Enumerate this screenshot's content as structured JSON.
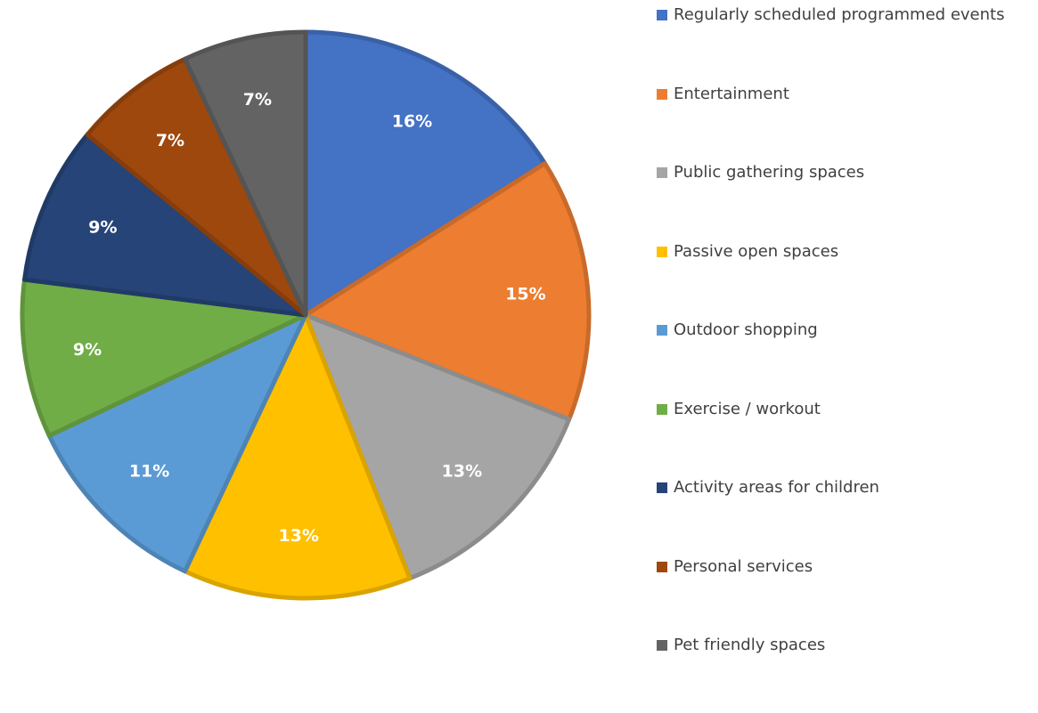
{
  "chart_data": {
    "type": "pie",
    "title": "",
    "legend_position": "right",
    "start": "top",
    "direction": "clockwise",
    "slices": [
      {
        "name": "Regularly scheduled programmed events",
        "value": 16,
        "label": "16%",
        "color": "#4472C4"
      },
      {
        "name": "Entertainment",
        "value": 15,
        "label": "15%",
        "color": "#ED7D31"
      },
      {
        "name": "Public gathering spaces",
        "value": 13,
        "label": "13%",
        "color": "#A5A5A5"
      },
      {
        "name": "Passive open spaces",
        "value": 13,
        "label": "13%",
        "color": "#FFC000"
      },
      {
        "name": "Outdoor shopping",
        "value": 11,
        "label": "11%",
        "color": "#5B9BD5"
      },
      {
        "name": "Exercise / workout",
        "value": 9,
        "label": "9%",
        "color": "#70AD47"
      },
      {
        "name": "Activity areas for children",
        "value": 9,
        "label": "9%",
        "color": "#264478"
      },
      {
        "name": "Personal services",
        "value": 7,
        "label": "7%",
        "color": "#9E480E"
      },
      {
        "name": "Pet friendly spaces",
        "value": 7,
        "label": "7%",
        "color": "#636363"
      }
    ]
  }
}
